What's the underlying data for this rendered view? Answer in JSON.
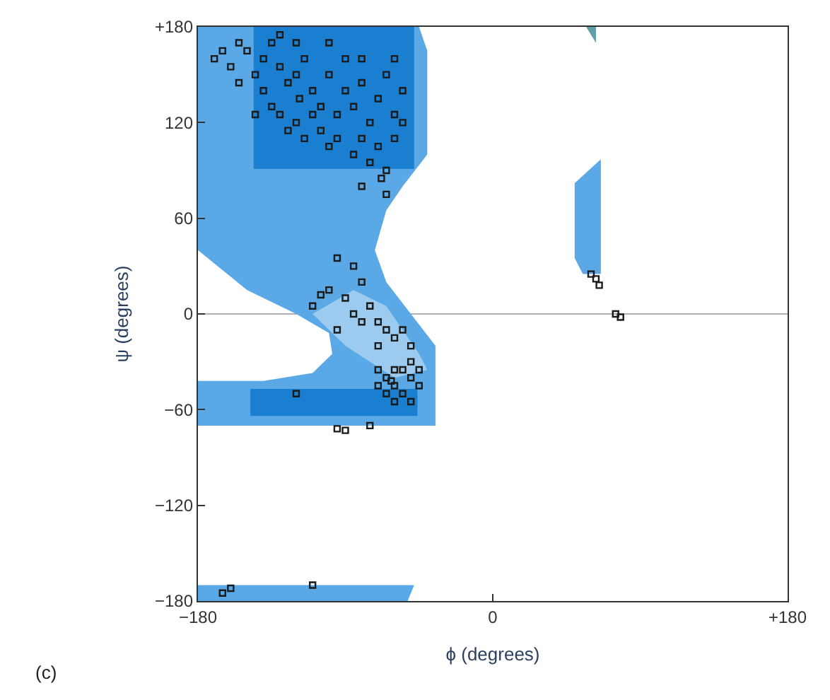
{
  "chart_data": {
    "type": "scatter",
    "xlabel": "ϕ (degrees)",
    "ylabel": "ψ (degrees)",
    "annotations": [
      "(c)"
    ],
    "xlim": [
      -180,
      180
    ],
    "ylim": [
      -180,
      180
    ],
    "xticks": [
      {
        "value": -180,
        "label": "−180"
      },
      0,
      {
        "value": 180,
        "label": "+180"
      }
    ],
    "yticks": [
      {
        "value": -180,
        "label": "−180"
      },
      {
        "value": -120,
        "label": "−120"
      },
      {
        "value": -60,
        "label": "−60"
      },
      0,
      60,
      120,
      {
        "value": 180,
        "label": "+180"
      }
    ],
    "grid": false,
    "ref_lines": [
      {
        "axis": "y",
        "value": 0,
        "color": "#b0b0b0"
      }
    ],
    "series": [
      {
        "type": "area",
        "color": "#5aa9e6",
        "x": [
          -180,
          -45,
          -40,
          -40,
          -55,
          -65,
          -72,
          -65,
          -50,
          -35,
          -35,
          -180,
          -180,
          -140,
          -110,
          -98,
          -100,
          -120,
          -150,
          -180
        ],
        "values": [
          180,
          180,
          165,
          100,
          80,
          65,
          40,
          20,
          0,
          -20,
          -70,
          -70,
          -42,
          -42,
          -37,
          -25,
          -12,
          0,
          15,
          40
        ]
      },
      {
        "type": "area",
        "color": "#5aa9e6",
        "x": [
          -180,
          -48,
          -52,
          -180
        ],
        "values": [
          -170,
          -170,
          -180,
          -180
        ]
      },
      {
        "type": "area",
        "color": "#5aa9e6",
        "x": [
          50,
          66,
          66,
          55,
          50
        ],
        "values": [
          82,
          97,
          25,
          25,
          35
        ]
      },
      {
        "type": "area",
        "color": "#5f9fa8",
        "x": [
          57,
          63,
          63
        ],
        "values": [
          180,
          180,
          170
        ]
      },
      {
        "type": "area",
        "color": "#9ccbef",
        "x": [
          -110,
          -85,
          -65,
          -45,
          -40,
          -60,
          -90
        ],
        "values": [
          0,
          15,
          5,
          -25,
          -35,
          -40,
          -20
        ]
      },
      {
        "type": "area",
        "color": "#1a7fd0",
        "x": [
          -146,
          -48,
          -48,
          -146
        ],
        "values": [
          180,
          180,
          91,
          91
        ]
      },
      {
        "type": "area",
        "color": "#1a7fd0",
        "x": [
          -148,
          -46,
          -46,
          -148
        ],
        "values": [
          -47,
          -47,
          -64,
          -64
        ]
      },
      {
        "marker": "square",
        "color": "#1a1a1a",
        "x": [
          -170,
          -165,
          -160,
          -155,
          -150,
          -145,
          -140,
          -135,
          -130,
          -125,
          -120,
          -118,
          -115,
          -110,
          -105,
          -100,
          -95,
          -90,
          -85,
          -80,
          -75,
          -70,
          -65,
          -60,
          -55,
          -140,
          -135,
          -130,
          -125,
          -120,
          -115,
          -110,
          -105,
          -100,
          -95,
          -85,
          -80,
          -75,
          -70,
          -65,
          -120,
          -100,
          -80,
          -60,
          -145,
          -155,
          -60,
          -55,
          -90,
          -130,
          -80,
          -65,
          -68,
          -95,
          -85,
          -80,
          -100,
          -110,
          -105,
          -90,
          -85,
          -80,
          -75,
          -70,
          -65,
          -60,
          -55,
          -50,
          -70,
          -95,
          -65,
          -60,
          -55,
          -50,
          -45,
          -60,
          -70,
          -65,
          -55,
          -50,
          -45,
          -60,
          -50,
          -70,
          -62,
          -95,
          -90,
          -75,
          -120,
          60,
          63,
          65,
          75,
          78,
          -165,
          -160,
          -110
        ],
        "values": [
          160,
          165,
          155,
          170,
          165,
          150,
          160,
          170,
          155,
          145,
          150,
          135,
          160,
          140,
          130,
          150,
          125,
          140,
          130,
          145,
          120,
          135,
          150,
          125,
          140,
          140,
          130,
          125,
          115,
          120,
          110,
          125,
          115,
          105,
          110,
          100,
          110,
          95,
          105,
          90,
          170,
          170,
          160,
          160,
          125,
          145,
          110,
          120,
          160,
          175,
          80,
          75,
          85,
          35,
          30,
          20,
          15,
          5,
          12,
          10,
          0,
          -5,
          5,
          -5,
          -10,
          -15,
          -10,
          -20,
          -20,
          -10,
          -40,
          -45,
          -35,
          -40,
          -45,
          -35,
          -45,
          -50,
          -50,
          -30,
          -35,
          -55,
          -55,
          -35,
          -42,
          -72,
          -73,
          -70,
          -50,
          25,
          22,
          18,
          0,
          -2,
          -175,
          -172,
          -170
        ]
      }
    ]
  }
}
